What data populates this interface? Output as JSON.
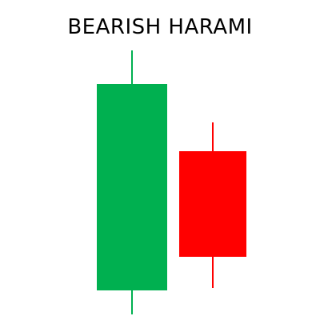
{
  "diagram": {
    "title": "BEARISH HARAMI",
    "colors": {
      "bullish": "#00B050",
      "bearish": "#FF0000"
    },
    "candles": [
      {
        "name": "bullish-candle",
        "direction": "bullish",
        "open": 1.0,
        "close": 9.6,
        "low": 0,
        "high": 11.0
      },
      {
        "name": "bearish-candle",
        "direction": "bearish",
        "open": 6.8,
        "close": 2.4,
        "low": 1.1,
        "high": 8.0
      }
    ]
  }
}
